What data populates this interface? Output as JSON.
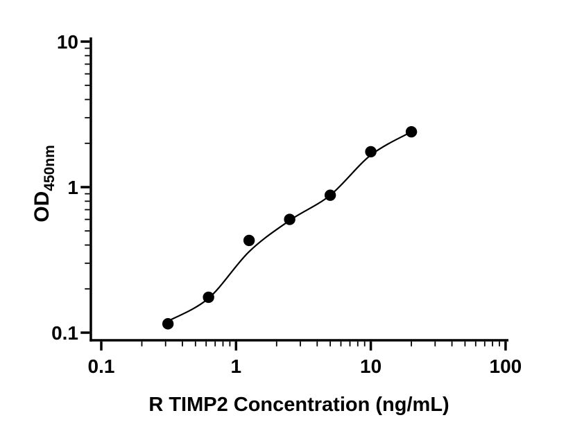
{
  "figure": {
    "background": "#ffffff"
  },
  "chart_data": {
    "type": "scatter",
    "title": "",
    "xlabel": "R TIMP2 Concentration (ng/mL)",
    "ylabel_main": "OD",
    "ylabel_sub": "450nm",
    "x_scale": "log",
    "y_scale": "log",
    "xlim": [
      0.1,
      100
    ],
    "ylim": [
      0.1,
      10
    ],
    "grid": false,
    "legend": false,
    "marker_color": "#000000",
    "line_color": "#000000",
    "x_ticks": [
      {
        "value": 0.1,
        "label": "0.1"
      },
      {
        "value": 1,
        "label": "1"
      },
      {
        "value": 10,
        "label": "10"
      },
      {
        "value": 100,
        "label": "100"
      }
    ],
    "y_ticks": [
      {
        "value": 0.1,
        "label": "0.1"
      },
      {
        "value": 1,
        "label": "1"
      },
      {
        "value": 10,
        "label": "10"
      }
    ],
    "points": [
      {
        "x": 0.3125,
        "y": 0.115
      },
      {
        "x": 0.625,
        "y": 0.175
      },
      {
        "x": 1.25,
        "y": 0.43
      },
      {
        "x": 2.5,
        "y": 0.6
      },
      {
        "x": 5,
        "y": 0.88
      },
      {
        "x": 10,
        "y": 1.75
      },
      {
        "x": 20,
        "y": 2.4
      }
    ],
    "fit_curve": [
      [
        0.3125,
        0.12
      ],
      [
        0.625,
        0.172
      ],
      [
        1.25,
        0.36
      ],
      [
        2.5,
        0.59
      ],
      [
        5,
        0.88
      ],
      [
        10,
        1.66
      ],
      [
        20,
        2.4
      ]
    ]
  }
}
